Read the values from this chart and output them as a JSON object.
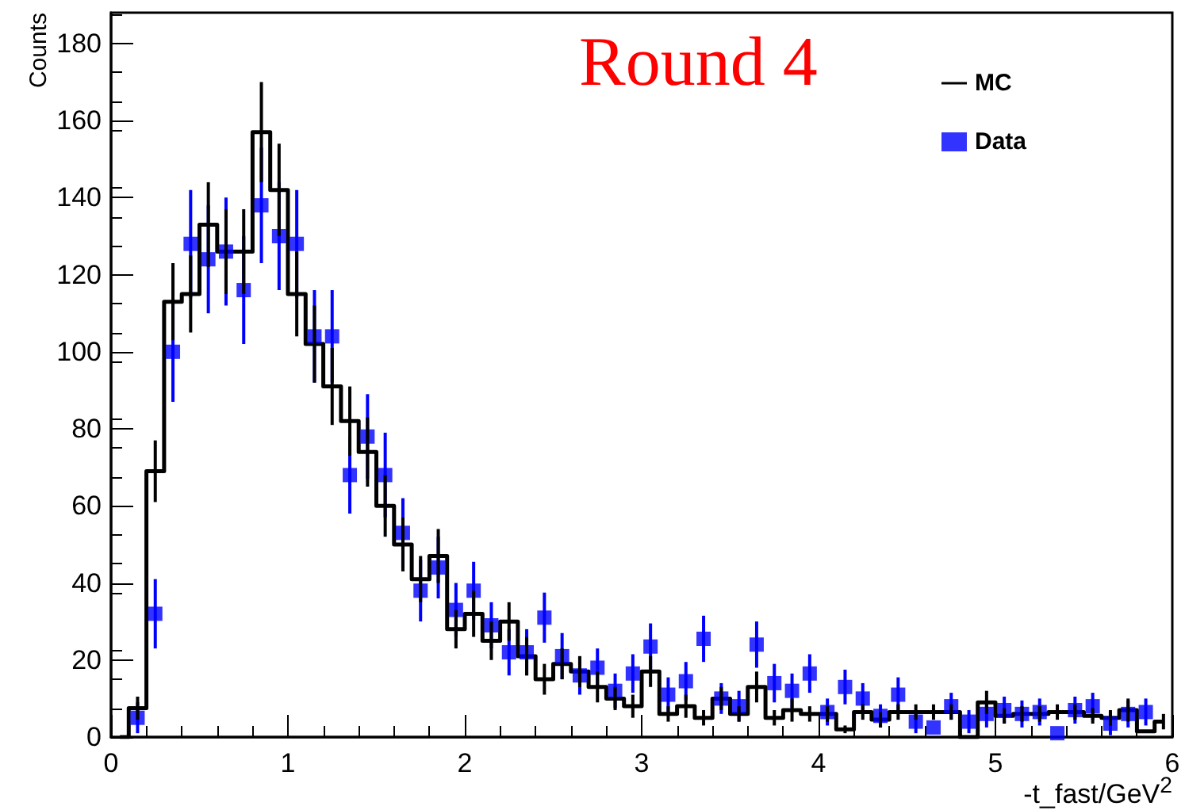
{
  "chart_data": {
    "type": "step",
    "title": "Round 4",
    "xlabel": "-t_fast/GeV$^{2}$",
    "ylabel": "Counts",
    "series": [
      {
        "name": "MC",
        "color": "#000000",
        "x": [
          0.05,
          0.15,
          0.25,
          0.35,
          0.45,
          0.55,
          0.65,
          0.75,
          0.85,
          0.95,
          1.05,
          1.15,
          1.25,
          1.35,
          1.45,
          1.55,
          1.65,
          1.75,
          1.85,
          1.95,
          2.05,
          2.15,
          2.25,
          2.35,
          2.45,
          2.55,
          2.65,
          2.75,
          2.85,
          2.95,
          3.05,
          3.15,
          3.25,
          3.35,
          3.45,
          3.55,
          3.65,
          3.75,
          3.85,
          3.95,
          4.05,
          4.15,
          4.25,
          4.35,
          4.45,
          4.55,
          4.65,
          4.75,
          4.85,
          4.95,
          5.05,
          5.15,
          5.25,
          5.35,
          5.45,
          5.55,
          5.65,
          5.75,
          5.85,
          5.95
        ],
        "values": [
          0,
          7.5,
          69,
          113,
          115,
          133,
          126,
          126,
          157,
          142,
          115,
          102,
          91,
          82,
          74,
          60,
          50,
          41,
          47,
          28,
          32,
          25,
          30,
          21,
          15,
          19,
          17,
          13,
          10,
          8,
          17,
          6,
          8,
          5,
          10,
          6,
          13,
          5,
          7,
          6,
          6,
          2,
          6.5,
          4.5,
          6.5,
          6.5,
          6.5,
          6.5,
          0,
          9,
          5.5,
          6,
          6,
          6.5,
          6.5,
          5.5,
          5,
          7,
          1.5,
          4
        ],
        "errors": [
          null,
          3,
          8,
          10,
          10,
          11,
          11,
          11,
          13,
          12,
          11,
          10,
          10,
          9,
          9,
          8,
          7,
          6,
          7,
          5,
          6,
          5,
          5,
          5,
          4,
          4,
          4,
          4,
          3,
          3,
          4,
          2,
          3,
          2,
          3,
          2,
          4,
          2,
          3,
          2,
          2,
          1,
          2,
          2,
          2,
          2,
          2,
          2,
          null,
          3,
          2,
          2,
          2,
          2,
          2,
          2,
          2,
          3,
          null,
          2
        ]
      },
      {
        "name": "Data",
        "type": "scatter",
        "color": "#0000ff",
        "marker": "square",
        "x": [
          0.15,
          0.25,
          0.35,
          0.45,
          0.55,
          0.65,
          0.75,
          0.85,
          0.95,
          1.05,
          1.15,
          1.25,
          1.35,
          1.45,
          1.55,
          1.65,
          1.75,
          1.85,
          1.95,
          2.05,
          2.15,
          2.25,
          2.35,
          2.45,
          2.55,
          2.65,
          2.75,
          2.85,
          2.95,
          3.05,
          3.15,
          3.25,
          3.35,
          3.45,
          3.55,
          3.65,
          3.75,
          3.85,
          3.95,
          4.05,
          4.15,
          4.25,
          4.35,
          4.45,
          4.55,
          4.65,
          4.75,
          4.85,
          4.95,
          5.05,
          5.15,
          5.25,
          5.35,
          5.45,
          5.55,
          5.65,
          5.75,
          5.85
        ],
        "values": [
          5,
          32,
          100,
          128,
          124,
          126,
          116,
          138,
          130,
          128,
          104,
          104,
          68,
          78,
          68,
          53,
          38,
          44,
          33,
          38,
          29,
          22,
          22,
          31,
          21,
          16,
          18,
          12,
          16.5,
          23.5,
          11,
          14.5,
          25.5,
          10,
          8,
          24,
          14,
          12,
          16.5,
          6.5,
          13,
          10,
          5.5,
          11,
          4,
          2.5,
          8,
          4,
          6,
          7,
          6,
          6.5,
          1,
          7,
          8,
          3.5,
          6,
          6.5
        ],
        "errors": [
          4,
          9,
          13,
          14,
          14,
          14,
          14,
          15,
          14,
          14,
          12,
          12,
          10,
          11,
          11,
          9,
          8,
          8,
          7,
          7.5,
          6,
          6,
          6,
          6.5,
          6,
          5,
          5,
          4.5,
          5,
          6,
          4.5,
          5,
          6,
          4,
          4,
          6,
          5,
          4.5,
          5,
          3.5,
          4.5,
          4,
          3,
          4.5,
          3,
          null,
          3.5,
          3,
          3.5,
          3.5,
          3.5,
          3.5,
          null,
          3.5,
          3.5,
          3,
          3.5,
          3.5
        ]
      }
    ],
    "xlim": [
      0,
      6
    ],
    "xticks": [
      0,
      1,
      2,
      3,
      4,
      5,
      6
    ],
    "ylim": [
      0,
      188
    ],
    "yticks": [
      0,
      20,
      40,
      60,
      80,
      100,
      120,
      140,
      160,
      180
    ],
    "legend": "top right",
    "grid": false
  }
}
